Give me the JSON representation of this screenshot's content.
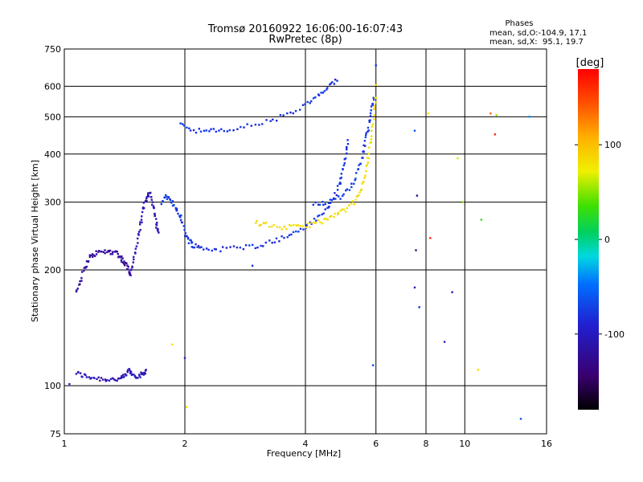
{
  "chart_data": {
    "type": "scatter",
    "title": "Tromsø 20160922 16:06:00-16:07:43",
    "subtitle": "RwPretec (8p)",
    "xlabel": "Frequency [MHz]",
    "ylabel": "Stationary phase Virtual Height [km]",
    "x_scale": "log",
    "y_scale": "log",
    "xlim": [
      1,
      16
    ],
    "ylim": [
      75,
      750
    ],
    "x_ticks": [
      1,
      2,
      4,
      6,
      8,
      10,
      16
    ],
    "x_tick_labels": [
      "1",
      "2",
      "4",
      "6",
      "8",
      "10",
      "16"
    ],
    "y_ticks": [
      75,
      100,
      200,
      300,
      400,
      500,
      600,
      750
    ],
    "y_tick_labels": [
      "75",
      "100",
      "200",
      "300",
      "400",
      "500",
      "600",
      "750"
    ],
    "grid": true,
    "phase_info": {
      "heading": "Phases",
      "line_o": "mean, sd,O:-104.9, 17.1",
      "line_x": "mean, sd,X:  95.1, 19.7"
    },
    "colorbar": {
      "label": "[deg]",
      "min": -180,
      "max": 180,
      "ticks": [
        100,
        0,
        -100
      ],
      "tick_labels": [
        "100",
        "0",
        "-100"
      ]
    },
    "traces": [
      {
        "phase": -120,
        "points": [
          [
            1.07,
            108
          ],
          [
            1.12,
            106
          ],
          [
            1.18,
            105
          ],
          [
            1.25,
            104
          ],
          [
            1.32,
            104
          ],
          [
            1.38,
            104
          ],
          [
            1.42,
            106
          ],
          [
            1.45,
            110
          ],
          [
            1.48,
            107
          ],
          [
            1.53,
            106
          ],
          [
            1.57,
            107
          ],
          [
            1.6,
            110
          ]
        ]
      },
      {
        "phase": -130,
        "points": [
          [
            1.07,
            175
          ],
          [
            1.1,
            190
          ],
          [
            1.13,
            205
          ],
          [
            1.16,
            216
          ],
          [
            1.2,
            221
          ],
          [
            1.25,
            223
          ],
          [
            1.3,
            223
          ],
          [
            1.35,
            222
          ],
          [
            1.38,
            216
          ],
          [
            1.41,
            210
          ],
          [
            1.44,
            203
          ],
          [
            1.46,
            196
          ]
        ]
      },
      {
        "phase": -120,
        "points": [
          [
            1.46,
            196
          ],
          [
            1.49,
            212
          ],
          [
            1.52,
            235
          ],
          [
            1.55,
            260
          ],
          [
            1.57,
            285
          ],
          [
            1.6,
            305
          ],
          [
            1.63,
            320
          ],
          [
            1.66,
            300
          ],
          [
            1.68,
            280
          ],
          [
            1.7,
            260
          ],
          [
            1.72,
            250
          ]
        ]
      },
      {
        "phase": -100,
        "points": [
          [
            1.75,
            300
          ],
          [
            1.8,
            310
          ],
          [
            1.85,
            300
          ],
          [
            1.9,
            290
          ],
          [
            1.95,
            275
          ],
          [
            2.0,
            250
          ],
          [
            2.05,
            238
          ],
          [
            2.1,
            232
          ],
          [
            2.2,
            228
          ],
          [
            2.4,
            226
          ],
          [
            2.7,
            228
          ],
          [
            3.0,
            231
          ],
          [
            3.3,
            237
          ],
          [
            3.6,
            244
          ],
          [
            3.9,
            255
          ],
          [
            4.2,
            268
          ],
          [
            4.5,
            285
          ],
          [
            4.7,
            305
          ],
          [
            4.85,
            330
          ],
          [
            4.95,
            360
          ],
          [
            5.05,
            400
          ],
          [
            5.1,
            435
          ]
        ]
      },
      {
        "phase": -100,
        "points": [
          [
            1.95,
            478
          ],
          [
            2.1,
            462
          ],
          [
            2.3,
            458
          ],
          [
            2.5,
            460
          ],
          [
            2.8,
            470
          ],
          [
            3.2,
            485
          ],
          [
            3.6,
            505
          ],
          [
            4.0,
            535
          ],
          [
            4.3,
            565
          ],
          [
            4.55,
            595
          ],
          [
            4.8,
            620
          ]
        ]
      },
      {
        "phase": -95,
        "points": [
          [
            4.2,
            295
          ],
          [
            4.5,
            300
          ],
          [
            4.9,
            310
          ],
          [
            5.2,
            330
          ],
          [
            5.4,
            360
          ],
          [
            5.55,
            395
          ],
          [
            5.65,
            430
          ],
          [
            5.75,
            475
          ],
          [
            5.85,
            520
          ],
          [
            5.92,
            560
          ]
        ]
      },
      {
        "phase": 100,
        "points": [
          [
            3.0,
            265
          ],
          [
            3.2,
            262
          ],
          [
            3.5,
            258
          ],
          [
            3.8,
            258
          ],
          [
            4.1,
            262
          ],
          [
            4.4,
            268
          ],
          [
            4.7,
            275
          ],
          [
            5.0,
            285
          ],
          [
            5.3,
            300
          ],
          [
            5.5,
            320
          ],
          [
            5.65,
            355
          ],
          [
            5.75,
            395
          ],
          [
            5.85,
            450
          ],
          [
            5.95,
            520
          ],
          [
            6.0,
            560
          ]
        ]
      }
    ],
    "scatter_points": [
      {
        "x": 1.03,
        "y": 101,
        "phase": -110
      },
      {
        "x": 1.86,
        "y": 128,
        "phase": 100
      },
      {
        "x": 2.0,
        "y": 118,
        "phase": -110
      },
      {
        "x": 2.02,
        "y": 88,
        "phase": 100
      },
      {
        "x": 2.95,
        "y": 205,
        "phase": -100
      },
      {
        "x": 5.9,
        "y": 113,
        "phase": -90
      },
      {
        "x": 7.5,
        "y": 460,
        "phase": -80
      },
      {
        "x": 7.6,
        "y": 312,
        "phase": -140
      },
      {
        "x": 7.55,
        "y": 225,
        "phase": -140
      },
      {
        "x": 7.5,
        "y": 180,
        "phase": -120
      },
      {
        "x": 7.7,
        "y": 160,
        "phase": -100
      },
      {
        "x": 8.1,
        "y": 510,
        "phase": 100
      },
      {
        "x": 8.2,
        "y": 242,
        "phase": 170
      },
      {
        "x": 8.9,
        "y": 130,
        "phase": -110
      },
      {
        "x": 9.3,
        "y": 175,
        "phase": -120
      },
      {
        "x": 9.6,
        "y": 390,
        "phase": 80
      },
      {
        "x": 9.9,
        "y": 300,
        "phase": 60
      },
      {
        "x": 10.8,
        "y": 110,
        "phase": 100
      },
      {
        "x": 11.0,
        "y": 270,
        "phase": 30
      },
      {
        "x": 11.6,
        "y": 510,
        "phase": 150
      },
      {
        "x": 11.9,
        "y": 450,
        "phase": 170
      },
      {
        "x": 12.0,
        "y": 505,
        "phase": 60
      },
      {
        "x": 13.8,
        "y": 82,
        "phase": -80
      },
      {
        "x": 14.5,
        "y": 500,
        "phase": -50
      },
      {
        "x": 6.0,
        "y": 605,
        "phase": 110
      },
      {
        "x": 6.0,
        "y": 680,
        "phase": -100
      }
    ]
  }
}
